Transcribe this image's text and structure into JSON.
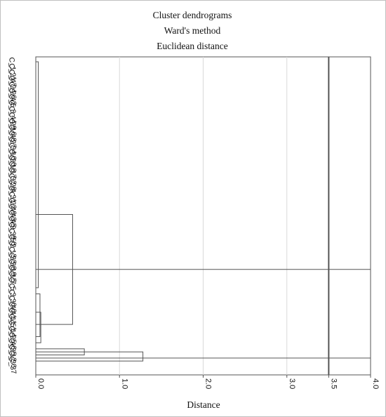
{
  "chart_data": {
    "type": "dendrogram",
    "title_lines": [
      "Cluster dendrograms",
      "Ward's method",
      "Euclidean distance"
    ],
    "xlabel": "Distance",
    "xlim": [
      0,
      4
    ],
    "x_ticks": [
      "0.0",
      "1.0",
      "2.0",
      "3.0",
      "3.5",
      "4.0"
    ],
    "x_tick_values": [
      0,
      1,
      2,
      3,
      3.5,
      4
    ],
    "grid": "vertical",
    "cut_line_at": 3.5,
    "leaves": [
      "C_1",
      "C_21",
      "C_47",
      "C_24",
      "C_26",
      "C_42",
      "C_6",
      "C_8",
      "C_44",
      "C_29",
      "C_16",
      "C_48",
      "C_27",
      "C_34",
      "C_10",
      "C_20",
      "C_18",
      "C_17",
      "C_32",
      "C_28",
      "C_4",
      "C_31",
      "C_22",
      "C_49",
      "C_43",
      "C_45",
      "C_9",
      "C_39",
      "C_50",
      "C_2",
      "C_13",
      "C_33",
      "C_38",
      "C_19",
      "C_15",
      "C_7",
      "C_5",
      "C_3",
      "C_30",
      "C_40",
      "C_41",
      "C_11",
      "C_51",
      "C_14",
      "C_25",
      "C_46",
      "C_35",
      "C_12",
      "C_36",
      "C_37"
    ],
    "merges": [
      {
        "height": 0.03,
        "from": 0,
        "to": 37
      },
      {
        "height": 0.05,
        "from": 38,
        "to": 45
      },
      {
        "height": 0.06,
        "from": 41,
        "to": 46
      },
      {
        "height": 0.44,
        "from": 25,
        "to": 43
      },
      {
        "height": 0.58,
        "from": 47,
        "to": 48
      },
      {
        "height": 1.28,
        "from": 47.5,
        "to": 49
      },
      {
        "height": 4.0,
        "from": 34,
        "to": 48.5
      }
    ]
  }
}
